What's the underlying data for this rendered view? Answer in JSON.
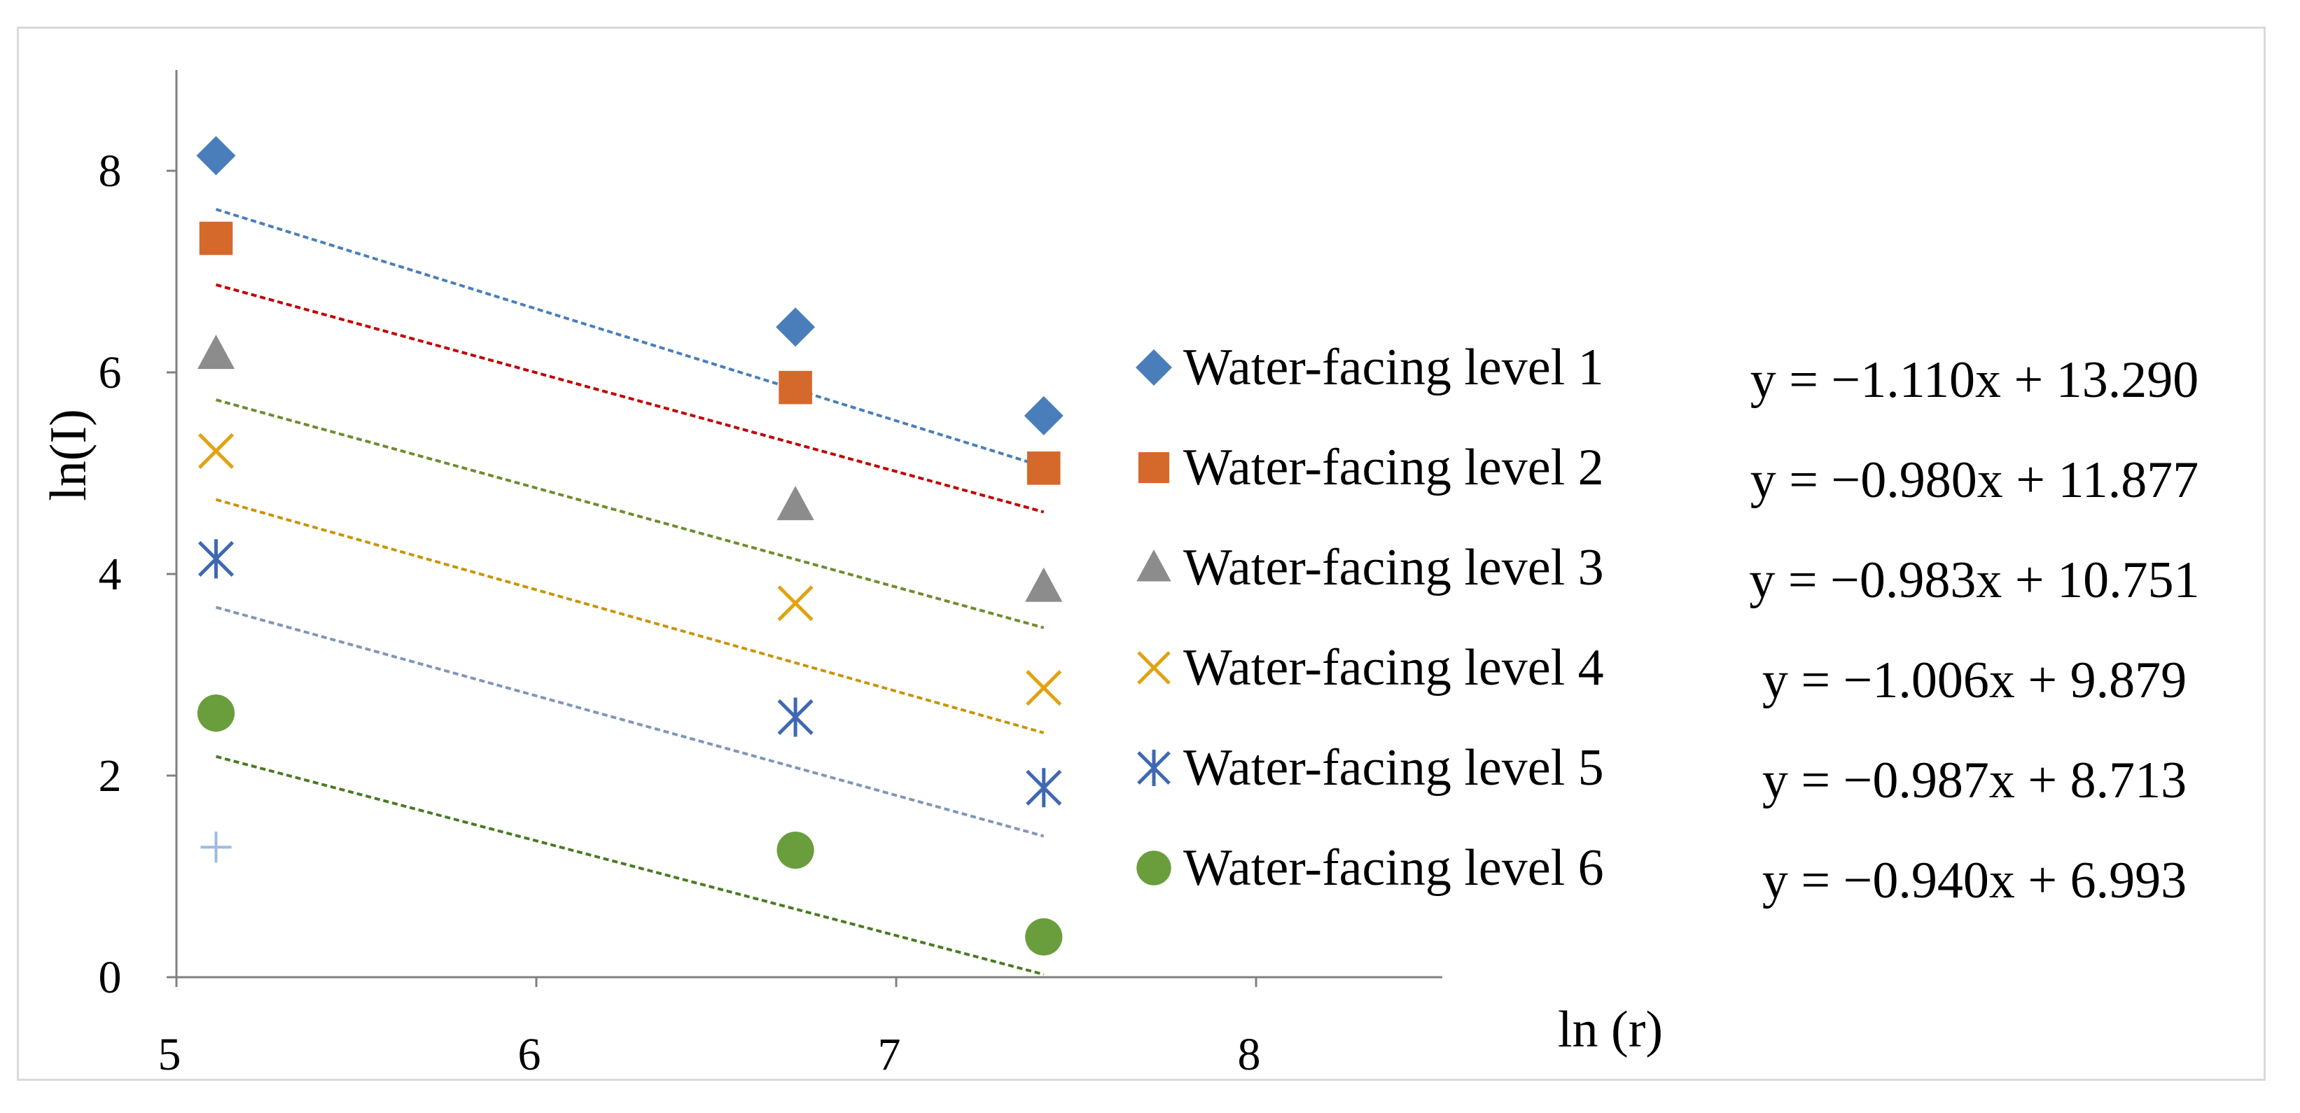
{
  "chart_data": {
    "type": "scatter",
    "title": "",
    "xlabel": "ln (r)",
    "ylabel": "ln(I)",
    "xlim": [
      5,
      8.5
    ],
    "ylim": [
      0,
      9
    ],
    "x_ticks": [
      5,
      6,
      7,
      8
    ],
    "y_ticks": [
      0,
      2,
      4,
      6,
      8
    ],
    "x_tick_labels": [
      "5",
      "6",
      "7",
      "8"
    ],
    "y_tick_labels": [
      "0",
      "2",
      "4",
      "6",
      "8"
    ],
    "legend_position": "right",
    "series": [
      {
        "name": "Water-facing level 1",
        "marker": "diamond",
        "color": "#4a7ebb",
        "trend_color": "#4a7ebb",
        "x": [
          5.11,
          6.72,
          7.41
        ],
        "y": [
          8.15,
          6.45,
          5.57
        ],
        "trendline": {
          "slope": -1.11,
          "intercept": 13.29
        },
        "equation": "y = −1.110x + 13.290"
      },
      {
        "name": "Water-facing level 2",
        "marker": "square",
        "color": "#d5692c",
        "trend_color": "#c00000",
        "x": [
          5.11,
          6.72,
          7.41
        ],
        "y": [
          7.33,
          5.85,
          5.05
        ],
        "trendline": {
          "slope": -0.98,
          "intercept": 11.877
        },
        "equation": "y = −0.980x + 11.877"
      },
      {
        "name": "Water-facing level 3",
        "marker": "triangle",
        "color": "#8c8c8c",
        "trend_color": "#6e8c2e",
        "x": [
          5.11,
          6.72,
          7.41
        ],
        "y": [
          6.18,
          4.68,
          3.87
        ],
        "trendline": {
          "slope": -0.983,
          "intercept": 10.751
        },
        "equation": "y = −0.983x + 10.751"
      },
      {
        "name": "Water-facing level 4",
        "marker": "x",
        "color": "#e0a312",
        "trend_color": "#c9940a",
        "x": [
          5.11,
          6.72,
          7.41
        ],
        "y": [
          5.22,
          3.71,
          2.87
        ],
        "trendline": {
          "slope": -1.006,
          "intercept": 9.879
        },
        "equation": "y = −1.006x + 9.879"
      },
      {
        "name": "Water-facing level 5",
        "marker": "asterisk",
        "color": "#3f68b3",
        "trend_color": "#8096b8",
        "x": [
          5.11,
          6.72,
          7.41
        ],
        "y": [
          4.15,
          2.58,
          1.88
        ],
        "trendline": {
          "slope": -0.987,
          "intercept": 8.713
        },
        "equation": "y = −0.987x + 8.713"
      },
      {
        "name": "Water-facing level 6",
        "marker": "circle",
        "color": "#6a9e3d",
        "trend_color": "#4a7a24",
        "x": [
          5.11,
          6.72,
          7.41
        ],
        "y": [
          2.62,
          1.26,
          0.4
        ],
        "trendline": {
          "slope": -0.94,
          "intercept": 6.993
        },
        "equation": "y = −0.940x + 6.993"
      }
    ],
    "extra_points": [
      {
        "marker": "plus",
        "color": "#9dbbe0",
        "x": 5.11,
        "y": 1.29
      }
    ]
  },
  "colors": {
    "axis": "#808080",
    "frame": "#d9d9d9"
  }
}
